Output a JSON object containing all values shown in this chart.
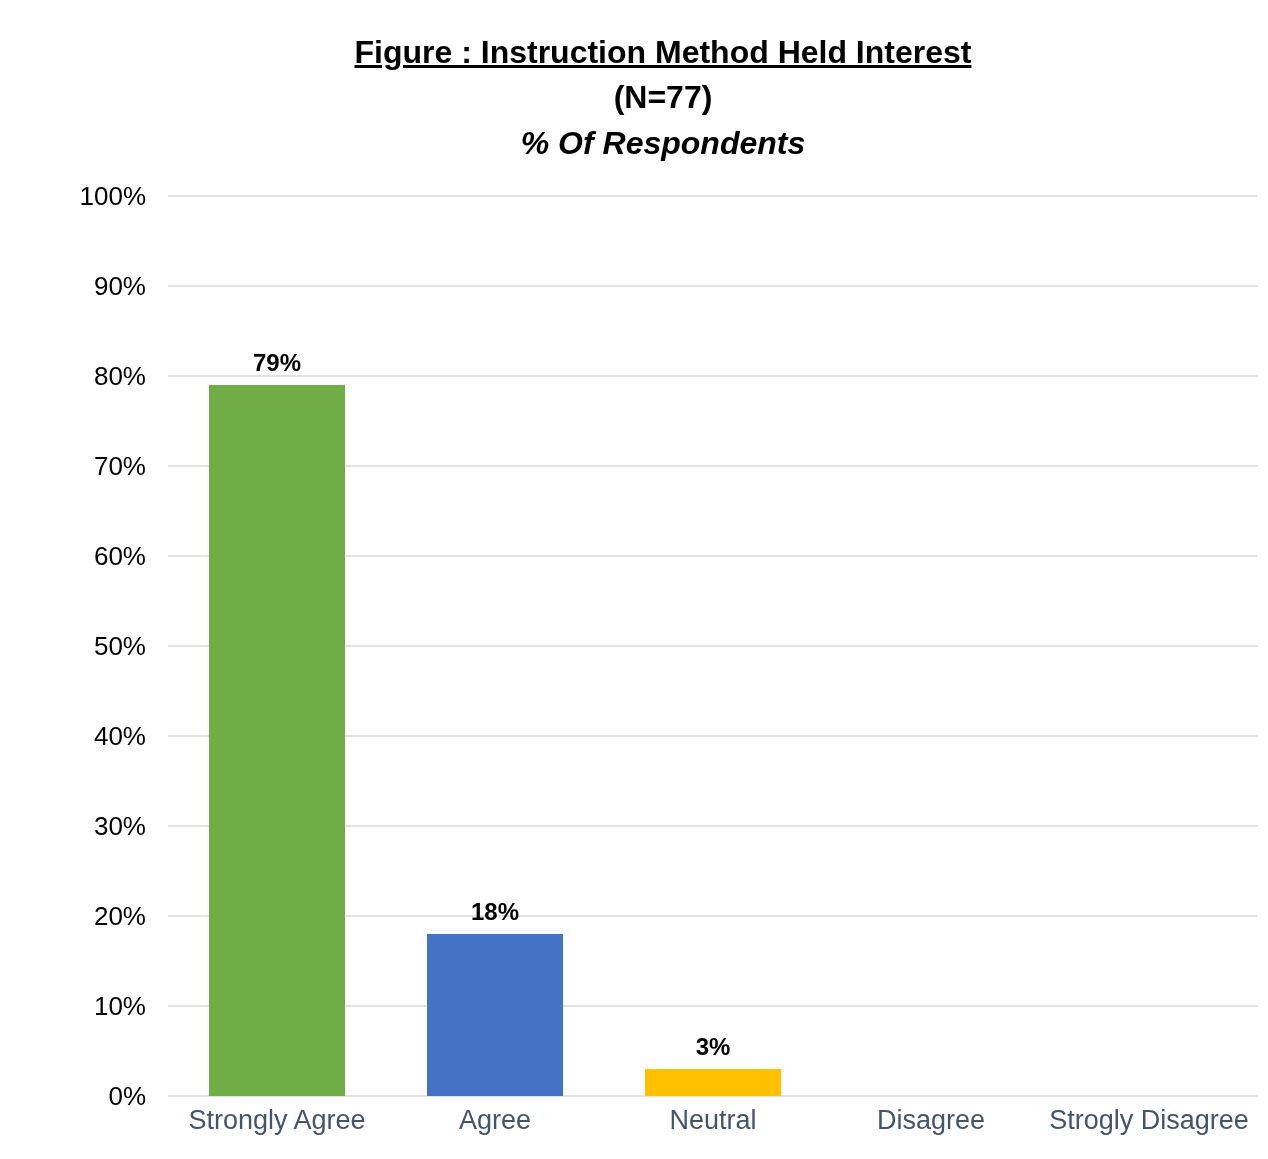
{
  "chart_data": {
    "type": "bar",
    "title": "Figure  : Instruction Method Held Interest",
    "subtitle": "(N=77)",
    "annotations": [
      "% Of Respondents"
    ],
    "categories": [
      "Strongly Agree",
      "Agree",
      "Neutral",
      "Disagree",
      "Strogly Disagree"
    ],
    "values": [
      79,
      18,
      3,
      0,
      0
    ],
    "colors": [
      "#70ad47",
      "#4472c4",
      "#ffc000",
      "#a5a5a5",
      "#5b9bd5"
    ],
    "value_labels": [
      "79%",
      "18%",
      "3%",
      null,
      null
    ],
    "ylim": [
      0,
      100
    ],
    "yticks": [
      {
        "value": 0,
        "label": "0%"
      },
      {
        "value": 10,
        "label": "10%"
      },
      {
        "value": 20,
        "label": "20%"
      },
      {
        "value": 30,
        "label": "30%"
      },
      {
        "value": 40,
        "label": "40%"
      },
      {
        "value": 50,
        "label": "50%"
      },
      {
        "value": 60,
        "label": "60%"
      },
      {
        "value": 70,
        "label": "70%"
      },
      {
        "value": 80,
        "label": "80%"
      },
      {
        "value": 90,
        "label": "90%"
      },
      {
        "value": 100,
        "label": "100%"
      }
    ],
    "grid": "y",
    "legend": false
  }
}
